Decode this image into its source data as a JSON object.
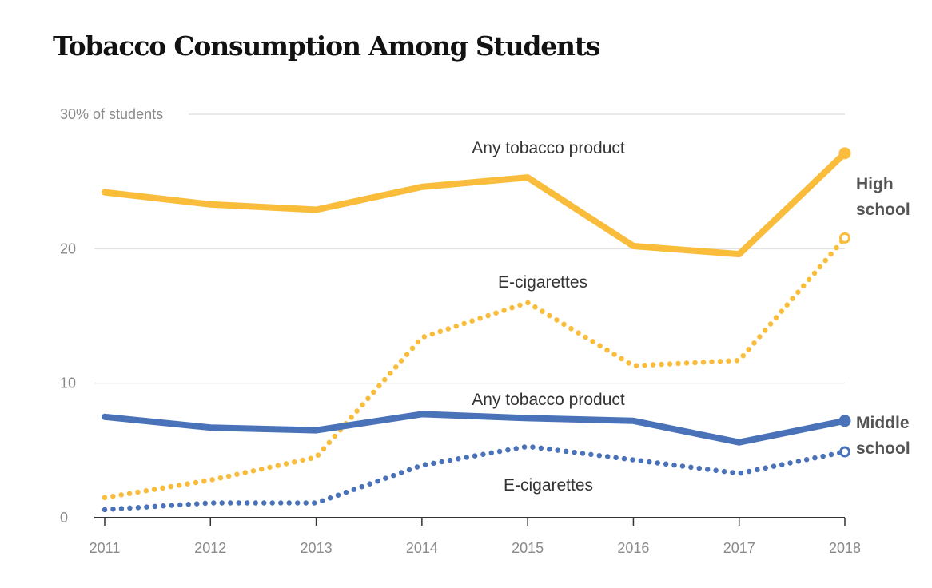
{
  "chart_data": {
    "type": "line",
    "title": "Tobacco Consumption Among Students",
    "x": [
      2011,
      2012,
      2013,
      2014,
      2015,
      2016,
      2017,
      2018
    ],
    "ylim": [
      0,
      30
    ],
    "yticks": [
      0,
      10,
      20,
      30
    ],
    "ytick_labels": [
      "0",
      "10",
      "20",
      "30% of students"
    ],
    "grid": true,
    "series": [
      {
        "name": "Any tobacco product",
        "group": "High school",
        "style": "solid",
        "color": "#f9bc3b",
        "values": [
          24.2,
          23.3,
          22.9,
          24.6,
          25.3,
          20.2,
          19.6,
          27.1
        ]
      },
      {
        "name": "E-cigarettes",
        "group": "High school",
        "style": "dotted",
        "color": "#f9bc3b",
        "values": [
          1.5,
          2.8,
          4.5,
          13.4,
          16.0,
          11.3,
          11.7,
          20.8
        ]
      },
      {
        "name": "Any tobacco product",
        "group": "Middle school",
        "style": "solid",
        "color": "#4a72b8",
        "values": [
          7.5,
          6.7,
          6.5,
          7.7,
          7.4,
          7.2,
          5.6,
          7.2
        ]
      },
      {
        "name": "E-cigarettes",
        "group": "Middle school",
        "style": "dotted",
        "color": "#4a72b8",
        "values": [
          0.6,
          1.1,
          1.1,
          3.9,
          5.3,
          4.3,
          3.3,
          4.9
        ]
      }
    ],
    "groups": [
      {
        "label_lines": [
          "High",
          "school"
        ],
        "color": "#f9bc3b"
      },
      {
        "label_lines": [
          "Middle",
          "school"
        ],
        "color": "#4a72b8"
      }
    ]
  }
}
